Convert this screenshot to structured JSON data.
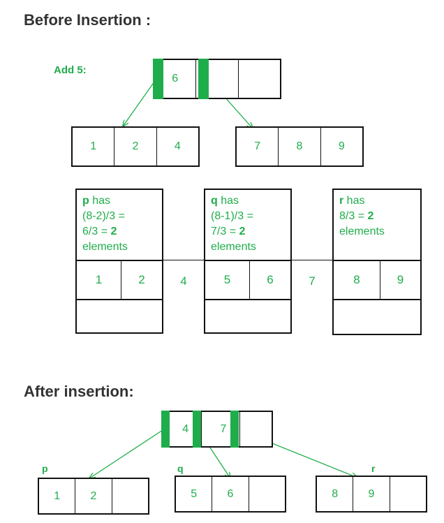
{
  "colors": {
    "green": "#1fad4b",
    "border": "#111111",
    "heading": "#333333"
  },
  "before": {
    "heading": "Before Insertion :",
    "add_label": "Add 5:",
    "root_keys": [
      "6",
      "",
      ""
    ],
    "left_child_keys": [
      "1",
      "2",
      "4"
    ],
    "right_child_keys": [
      "7",
      "8",
      "9"
    ],
    "notes": {
      "p": {
        "name": "p",
        "has": " has",
        "line2": "(8-2)/3 =",
        "line3_pre": "6/3 = ",
        "line3_num": "2",
        "line4": "elements"
      },
      "q": {
        "name": "q",
        "has": " has",
        "line2": "(8-1)/3 =",
        "line3_pre": "7/3 = ",
        "line3_num": "2",
        "line4": "elements"
      },
      "r": {
        "name": "r",
        "has": " has",
        "line2_pre": "8/3 = ",
        "line2_num": "2",
        "line3": "elements"
      }
    },
    "sequence": [
      "1",
      "2",
      "4",
      "5",
      "6",
      "7",
      "8",
      "9"
    ]
  },
  "after": {
    "heading": "After insertion:",
    "root_keys": [
      "4",
      "7",
      ""
    ],
    "child_labels": [
      "p",
      "q",
      "r"
    ],
    "p_keys": [
      "1",
      "2",
      ""
    ],
    "q_keys": [
      "5",
      "6",
      ""
    ],
    "r_keys": [
      "8",
      "9",
      ""
    ]
  }
}
